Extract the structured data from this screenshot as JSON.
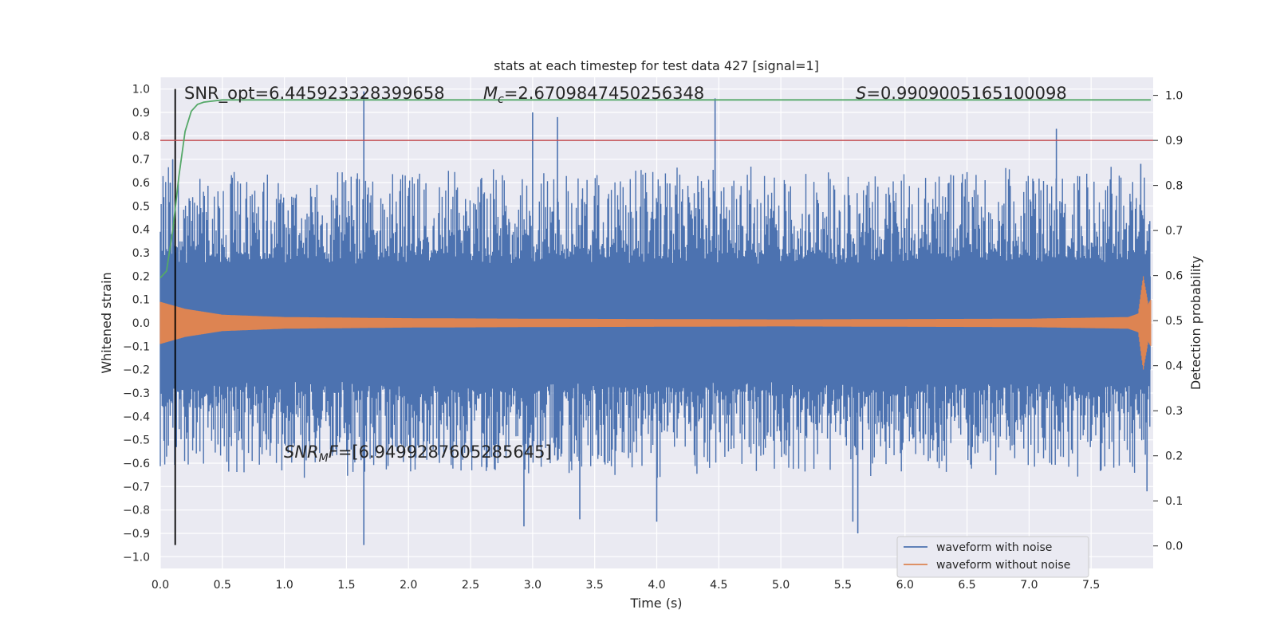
{
  "chart_data": {
    "type": "line",
    "title": "stats at each timestep for test data 427 [signal=1]",
    "xlabel": "Time (s)",
    "ylabel": "Whitened strain",
    "ylabel_right": "Detection probability",
    "xlim": [
      0.0,
      8.0
    ],
    "ylim": [
      -1.05,
      1.05
    ],
    "ylim_right": [
      -0.05,
      1.04
    ],
    "x_ticks": [
      "0.0",
      "0.5",
      "1.0",
      "1.5",
      "2.0",
      "2.5",
      "3.0",
      "3.5",
      "4.0",
      "4.5",
      "5.0",
      "5.5",
      "6.0",
      "6.5",
      "7.0",
      "7.5"
    ],
    "x_tick_values": [
      0.0,
      0.5,
      1.0,
      1.5,
      2.0,
      2.5,
      3.0,
      3.5,
      4.0,
      4.5,
      5.0,
      5.5,
      6.0,
      6.5,
      7.0,
      7.5
    ],
    "y_ticks": [
      "1.0",
      "0.9",
      "0.8",
      "0.7",
      "0.6",
      "0.5",
      "0.4",
      "0.3",
      "0.2",
      "0.1",
      "0.0",
      "−0.1",
      "−0.2",
      "−0.3",
      "−0.4",
      "−0.5",
      "−0.6",
      "−0.7",
      "−0.8",
      "−0.9",
      "−1.0"
    ],
    "y_tick_values": [
      1.0,
      0.9,
      0.8,
      0.7,
      0.6,
      0.5,
      0.4,
      0.3,
      0.2,
      0.1,
      0.0,
      -0.1,
      -0.2,
      -0.3,
      -0.4,
      -0.5,
      -0.6,
      -0.7,
      -0.8,
      -0.9,
      -1.0
    ],
    "y_ticks_right": [
      "1.0",
      "0.9",
      "0.8",
      "0.7",
      "0.6",
      "0.5",
      "0.4",
      "0.3",
      "0.2",
      "0.1",
      "0.0"
    ],
    "y_tick_values_right": [
      1.0,
      0.9,
      0.8,
      0.7,
      0.6,
      0.5,
      0.4,
      0.3,
      0.2,
      0.1,
      0.0
    ],
    "grid": true,
    "legend_position": "bottom-right",
    "annotations": {
      "snr_opt": "SNR_opt=6.445923328399658",
      "mc": "=2.6709847450256348",
      "s": "=0.9909005165100098",
      "snr_mf": "=[6.949928760528564​5]"
    },
    "series": [
      {
        "name": "waveform with noise",
        "color": "#4c72b0",
        "envelope_top": [
          [
            0.0,
            0.62
          ],
          [
            0.5,
            0.62
          ],
          [
            1.0,
            0.6
          ],
          [
            1.5,
            0.62
          ],
          [
            2.0,
            0.62
          ],
          [
            2.5,
            0.62
          ],
          [
            3.0,
            0.62
          ],
          [
            3.5,
            0.62
          ],
          [
            4.0,
            0.62
          ],
          [
            4.5,
            0.64
          ],
          [
            5.0,
            0.62
          ],
          [
            5.5,
            0.62
          ],
          [
            6.0,
            0.62
          ],
          [
            6.5,
            0.62
          ],
          [
            7.0,
            0.62
          ],
          [
            7.5,
            0.62
          ],
          [
            7.98,
            0.62
          ]
        ],
        "envelope_bottom": [
          [
            0.0,
            -0.62
          ],
          [
            0.5,
            -0.62
          ],
          [
            1.0,
            -0.62
          ],
          [
            1.5,
            -0.62
          ],
          [
            2.0,
            -0.62
          ],
          [
            2.5,
            -0.62
          ],
          [
            3.0,
            -0.62
          ],
          [
            3.5,
            -0.62
          ],
          [
            4.0,
            -0.62
          ],
          [
            4.5,
            -0.62
          ],
          [
            5.0,
            -0.62
          ],
          [
            5.5,
            -0.62
          ],
          [
            6.0,
            -0.62
          ],
          [
            6.5,
            -0.62
          ],
          [
            7.0,
            -0.62
          ],
          [
            7.5,
            -0.62
          ],
          [
            7.98,
            -0.62
          ]
        ],
        "peaks": [
          [
            0.08,
            0.6
          ],
          [
            0.1,
            0.7
          ],
          [
            1.64,
            0.99
          ],
          [
            1.64,
            -0.95
          ],
          [
            2.93,
            -0.87
          ],
          [
            3.0,
            0.9
          ],
          [
            3.2,
            0.88
          ],
          [
            3.38,
            -0.84
          ],
          [
            4.0,
            -0.85
          ],
          [
            4.47,
            0.96
          ],
          [
            5.62,
            -0.9
          ],
          [
            5.58,
            -0.85
          ],
          [
            7.22,
            0.83
          ],
          [
            7.9,
            0.68
          ],
          [
            7.95,
            -0.72
          ]
        ]
      },
      {
        "name": "waveform without noise",
        "color": "#dd8452",
        "amplitude": [
          [
            0.0,
            0.09
          ],
          [
            0.2,
            0.06
          ],
          [
            0.5,
            0.035
          ],
          [
            1.0,
            0.025
          ],
          [
            2.0,
            0.02
          ],
          [
            3.0,
            0.018
          ],
          [
            5.0,
            0.015
          ],
          [
            7.0,
            0.018
          ],
          [
            7.8,
            0.025
          ],
          [
            7.88,
            0.04
          ],
          [
            7.92,
            0.2
          ],
          [
            7.96,
            0.08
          ],
          [
            7.98,
            0.1
          ]
        ]
      },
      {
        "name": "detection probability",
        "axis": "right",
        "color": "#55a868",
        "points": [
          [
            0.0,
            0.595
          ],
          [
            0.05,
            0.61
          ],
          [
            0.1,
            0.7
          ],
          [
            0.15,
            0.82
          ],
          [
            0.2,
            0.92
          ],
          [
            0.25,
            0.965
          ],
          [
            0.3,
            0.98
          ],
          [
            0.35,
            0.985
          ],
          [
            0.5,
            0.99
          ],
          [
            1.0,
            0.99
          ],
          [
            3.0,
            0.99
          ],
          [
            5.0,
            0.99
          ],
          [
            7.0,
            0.99
          ],
          [
            7.98,
            0.99
          ]
        ]
      },
      {
        "name": "threshold",
        "axis": "right",
        "color": "#c44e52",
        "value": 0.9
      },
      {
        "name": "marker",
        "color": "#000000",
        "x": 0.12,
        "y_range": [
          -0.95,
          1.0
        ]
      }
    ],
    "legend": [
      {
        "label": "waveform with noise",
        "color": "#4c72b0"
      },
      {
        "label": "waveform without noise",
        "color": "#dd8452"
      }
    ]
  }
}
